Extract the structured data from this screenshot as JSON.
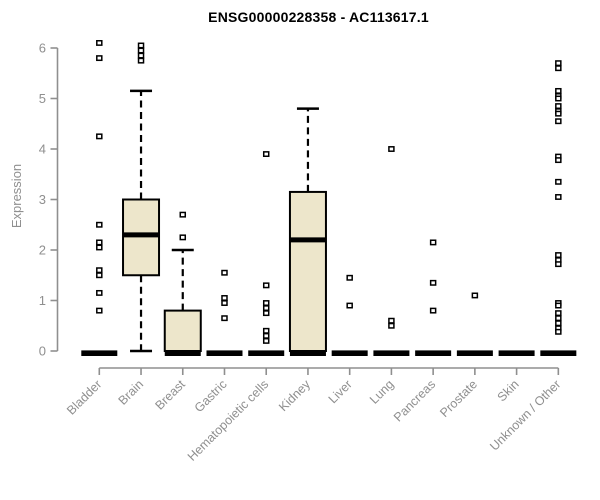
{
  "chart_data": {
    "type": "boxplot",
    "title": "ENSG00000228358 - AC113617.1",
    "xlabel": "",
    "ylabel": "Expression",
    "ylim": [
      0,
      6
    ],
    "yticks": [
      0,
      1,
      2,
      3,
      4,
      5,
      6
    ],
    "grid": false,
    "legend": "none",
    "categories": [
      "Bladder",
      "Brain",
      "Breast",
      "Gastric",
      "Hematopoietic cells",
      "Kidney",
      "Liver",
      "Lung",
      "Pancreas",
      "Prostate",
      "Skin",
      "Unknown / Other"
    ],
    "boxes": [
      {
        "category": "Bladder",
        "q1": 0,
        "median": 0,
        "q3": 0,
        "whisker_low": 0,
        "whisker_high": 0,
        "outliers": [
          6.1,
          5.8,
          4.25,
          2.5,
          2.15,
          2.05,
          1.6,
          1.5,
          1.15,
          0.8
        ]
      },
      {
        "category": "Brain",
        "q1": 1.5,
        "median": 2.3,
        "q3": 3.0,
        "whisker_low": 0,
        "whisker_high": 5.15,
        "outliers": [
          6.05,
          5.95,
          5.85,
          5.75
        ]
      },
      {
        "category": "Breast",
        "q1": 0,
        "median": 0,
        "q3": 0.8,
        "whisker_low": 0,
        "whisker_high": 2.0,
        "outliers": [
          2.7,
          2.25
        ]
      },
      {
        "category": "Gastric",
        "q1": 0,
        "median": 0,
        "q3": 0,
        "whisker_low": 0,
        "whisker_high": 0,
        "outliers": [
          1.55,
          1.05,
          0.95,
          0.65
        ]
      },
      {
        "category": "Hematopoietic cells",
        "q1": 0,
        "median": 0,
        "q3": 0,
        "whisker_low": 0,
        "whisker_high": 0,
        "outliers": [
          3.9,
          1.3,
          0.95,
          0.85,
          0.75,
          0.4,
          0.3,
          0.2
        ]
      },
      {
        "category": "Kidney",
        "q1": 0,
        "median": 2.2,
        "q3": 3.15,
        "whisker_low": 0,
        "whisker_high": 4.8,
        "outliers": []
      },
      {
        "category": "Liver",
        "q1": 0,
        "median": 0,
        "q3": 0,
        "whisker_low": 0,
        "whisker_high": 0,
        "outliers": [
          1.45,
          0.9
        ]
      },
      {
        "category": "Lung",
        "q1": 0,
        "median": 0,
        "q3": 0,
        "whisker_low": 0,
        "whisker_high": 0,
        "outliers": [
          4.0,
          0.6,
          0.5
        ]
      },
      {
        "category": "Pancreas",
        "q1": 0,
        "median": 0,
        "q3": 0,
        "whisker_low": 0,
        "whisker_high": 0,
        "outliers": [
          2.15,
          1.35,
          0.8
        ]
      },
      {
        "category": "Prostate",
        "q1": 0,
        "median": 0,
        "q3": 0,
        "whisker_low": 0,
        "whisker_high": 0,
        "outliers": [
          1.1
        ]
      },
      {
        "category": "Skin",
        "q1": 0,
        "median": 0,
        "q3": 0,
        "whisker_low": 0,
        "whisker_high": 0,
        "outliers": []
      },
      {
        "category": "Unknown / Other",
        "q1": 0,
        "median": 0,
        "q3": 0,
        "whisker_low": 0,
        "whisker_high": 0,
        "outliers": [
          5.7,
          5.6,
          5.15,
          5.05,
          5.0,
          4.85,
          4.75,
          4.7,
          4.55,
          3.85,
          3.78,
          3.35,
          3.05,
          1.9,
          1.8,
          1.72,
          0.95,
          0.9,
          0.75,
          0.65,
          0.55,
          0.45,
          0.38
        ]
      }
    ],
    "colors": {
      "box_fill": "#EDE6CB",
      "box_stroke": "#000000",
      "median": "#000000",
      "whisker": "#000000",
      "outlier_fill": "#FFFFFF",
      "axis": "#8F8F8F",
      "tick_text": "#8F8F8F",
      "title_text": "#000000",
      "background": "#FFFFFF"
    }
  }
}
